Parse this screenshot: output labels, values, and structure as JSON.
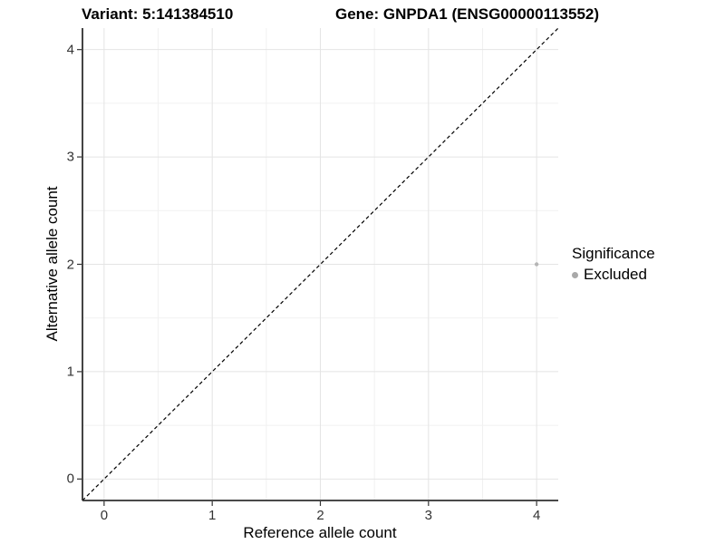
{
  "chart_data": {
    "type": "scatter",
    "title_left": "Variant: 5:141384510",
    "title_right": "Gene: GNPDA1 (ENSG00000113552)",
    "xlabel": "Reference allele count",
    "ylabel": "Alternative allele count",
    "legend_title": "Significance",
    "legend_position": "right",
    "xlim": [
      -0.2,
      4.2
    ],
    "ylim": [
      -0.2,
      4.2
    ],
    "x_ticks": [
      0,
      1,
      2,
      3,
      4
    ],
    "y_ticks": [
      0,
      1,
      2,
      3,
      4
    ],
    "x_tick_labels": [
      "0",
      "1",
      "2",
      "3",
      "4"
    ],
    "y_tick_labels": [
      "0",
      "1",
      "2",
      "3",
      "4"
    ],
    "grid_major": true,
    "grid_minor": true,
    "series": [
      {
        "name": "Excluded",
        "color": "#b5b5b5",
        "point_radius": 2.2,
        "points": [
          [
            4,
            2
          ]
        ]
      }
    ],
    "reference_line": {
      "kind": "identity",
      "from": [
        -0.2,
        -0.2
      ],
      "to": [
        4.2,
        4.2
      ],
      "style": "dashed",
      "color": "#000000"
    },
    "colors": {
      "background": "#ffffff",
      "grid_major": "#e4e4e4",
      "grid_minor": "#f1f1f1",
      "axis_line": "#2f2f2f",
      "tick_mark": "#333333",
      "tick_label": "#333333",
      "legend_dot": "#a9a9a9"
    }
  }
}
